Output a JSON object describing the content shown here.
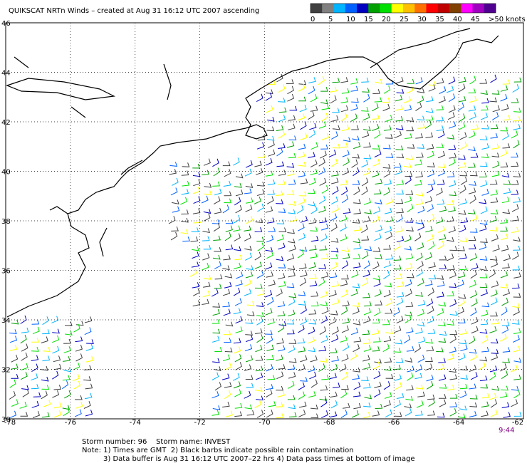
{
  "title": "QUIKSCAT NRTn Winds – created at Aug 31 16:12 UTC 2007 ascending",
  "colorbar": {
    "labels": [
      "0",
      "5",
      "10",
      "15",
      "20",
      "25",
      "30",
      "35",
      "40",
      "45",
      ">50 knots"
    ],
    "colors": [
      "#404040",
      "#808080",
      "#00b4ff",
      "#0060ff",
      "#0000c0",
      "#00a000",
      "#00e000",
      "#ffff00",
      "#ffc000",
      "#ff7000",
      "#ff0000",
      "#c00000",
      "#804000",
      "#ff00ff",
      "#a000c0",
      "#500090"
    ]
  },
  "lat_ticks": [
    46,
    44,
    42,
    40,
    38,
    36,
    34,
    32,
    30
  ],
  "lon_ticks": [
    -78,
    -76,
    -74,
    -72,
    -70,
    -68,
    -66,
    -64,
    -62
  ],
  "pass_time": "9:44",
  "notes": [
    "Storm number: 96    Storm name: INVEST",
    "Note: 1) Times are GMT  2) Black barbs indicate possible rain contamination",
    "3) Data buffer is Aug 31 16:12 UTC 2007–22 hrs 4) Data pass times at bottom of image"
  ]
}
